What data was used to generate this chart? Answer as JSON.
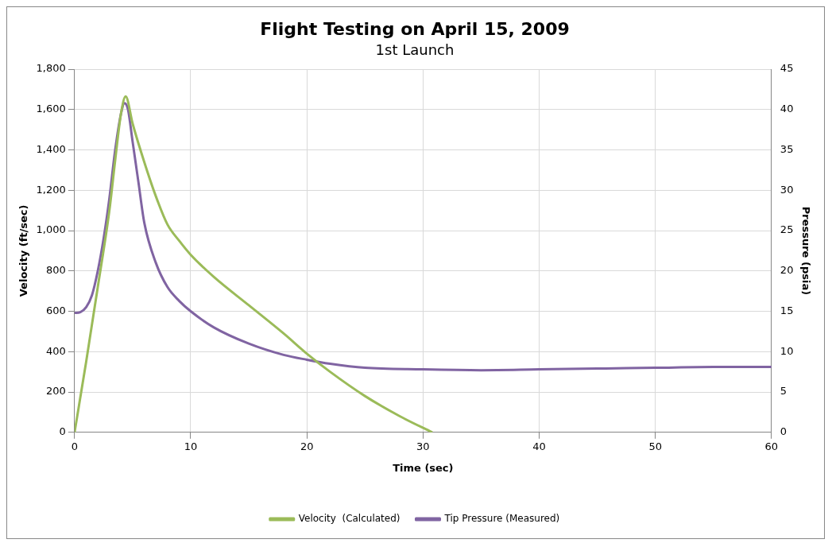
{
  "chart_data": {
    "type": "line",
    "title": "Flight Testing on April 15, 2009",
    "subtitle": "1st Launch",
    "xlabel": "Time (sec)",
    "ylabel": "Velocity (ft/sec)",
    "y2label": "Pressure (psia)",
    "xlim": [
      0,
      60
    ],
    "xticks": [
      0,
      10,
      20,
      30,
      40,
      50,
      60
    ],
    "ylim": [
      0,
      1800
    ],
    "yticks": [
      {
        "value": 0,
        "label": "0"
      },
      {
        "value": 200,
        "label": "200"
      },
      {
        "value": 400,
        "label": "400"
      },
      {
        "value": 600,
        "label": "600"
      },
      {
        "value": 800,
        "label": "800"
      },
      {
        "value": 1000,
        "label": "1,000"
      },
      {
        "value": 1200,
        "label": "1,200"
      },
      {
        "value": 1400,
        "label": "1,400"
      },
      {
        "value": 1600,
        "label": "1,600"
      },
      {
        "value": 1800,
        "label": "1,800"
      }
    ],
    "y2lim": [
      0,
      45
    ],
    "y2ticks": [
      0,
      5,
      10,
      15,
      20,
      25,
      30,
      35,
      40,
      45
    ],
    "grid": true,
    "legend": "bottom",
    "marker": "none",
    "line_style": "solid",
    "series": [
      {
        "name": "Velocity  (Calculated)",
        "color": "#9bbb59",
        "x": [
          0,
          1,
          2,
          3,
          3.5,
          4,
          4.4,
          5,
          6,
          7,
          8,
          9,
          10,
          12,
          15,
          18,
          20,
          22,
          25,
          28,
          30.8
        ],
        "values": [
          0,
          350,
          720,
          1100,
          1350,
          1580,
          1665,
          1530,
          1340,
          1170,
          1030,
          950,
          880,
          770,
          630,
          490,
          390,
          300,
          180,
          80,
          0
        ]
      },
      {
        "name": "Tip Pressure (Measured)",
        "color": "#8064a2",
        "axis": "y2",
        "x": [
          0,
          0.5,
          1,
          1.5,
          2,
          2.5,
          3,
          3.5,
          4,
          4.3,
          4.6,
          5,
          5.5,
          6,
          7,
          8,
          9,
          10,
          12,
          15,
          18,
          20,
          22,
          25,
          30,
          35,
          40,
          45,
          50,
          55,
          60
        ],
        "values": [
          14.8,
          14.9,
          15.5,
          17,
          20,
          24,
          29,
          35,
          39.5,
          40.8,
          40,
          36,
          31,
          26,
          21,
          18,
          16.3,
          15,
          13,
          11,
          9.6,
          9,
          8.5,
          8,
          7.8,
          7.7,
          7.8,
          7.9,
          8,
          8.1,
          8.1
        ]
      }
    ]
  }
}
